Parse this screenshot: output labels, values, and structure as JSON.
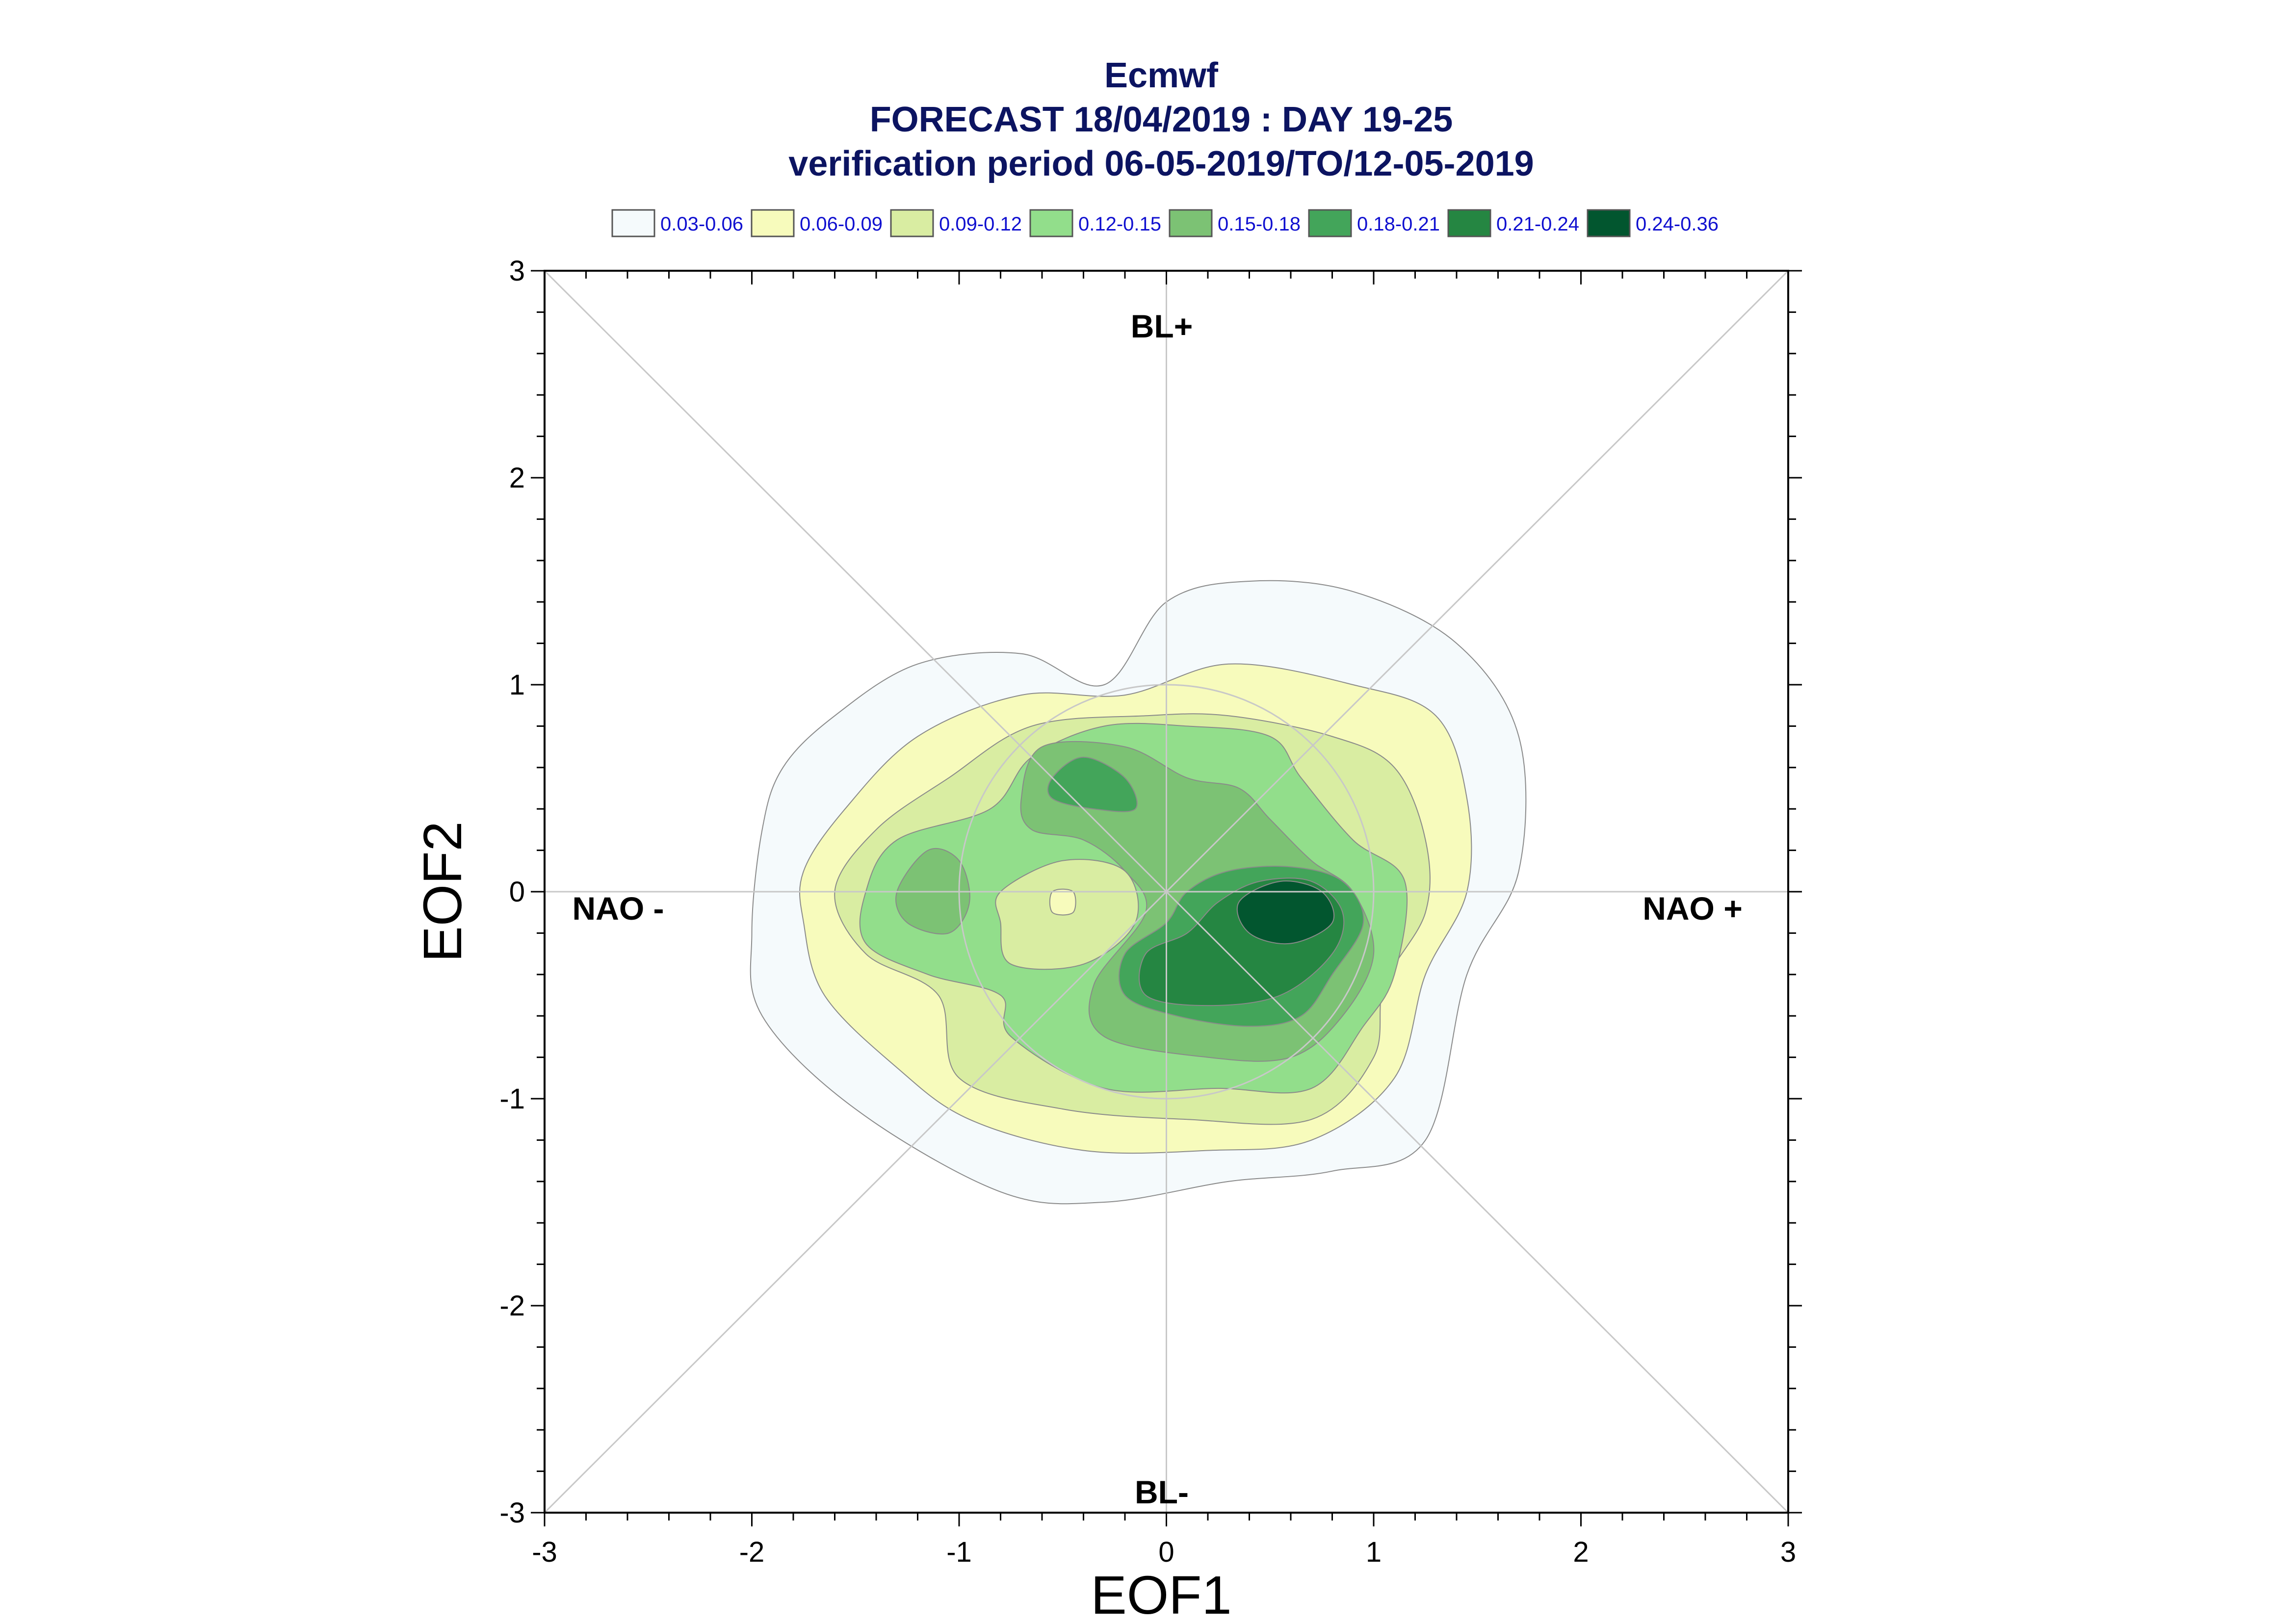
{
  "chart_data": {
    "type": "contour",
    "title": "Ecmwf",
    "subtitle": "FORECAST 18/04/2019 : DAY 19-25",
    "subtitle2": "verification period 06-05-2019/TO/12-05-2019",
    "xlabel": "EOF1",
    "ylabel": "EOF2",
    "xlim": [
      -3,
      3
    ],
    "ylim": [
      -3,
      3
    ],
    "x_ticks": [
      "-3",
      "-2",
      "-1",
      "0",
      "1",
      "2",
      "3"
    ],
    "y_ticks": [
      "-3",
      "-2",
      "-1",
      "0",
      "1",
      "2",
      "3"
    ],
    "regime_labels": {
      "top": "BL+",
      "bottom": "BL-",
      "left": "NAO -",
      "right": "NAO +"
    },
    "legend": [
      {
        "label": "0.03-0.06",
        "color": "#f5fafc"
      },
      {
        "label": "0.06-0.09",
        "color": "#f7fbbc"
      },
      {
        "label": "0.09-0.12",
        "color": "#d9eda2"
      },
      {
        "label": "0.12-0.15",
        "color": "#92de8b"
      },
      {
        "label": "0.15-0.18",
        "color": "#7cc274"
      },
      {
        "label": "0.18-0.21",
        "color": "#43a55a"
      },
      {
        "label": "0.21-0.24",
        "color": "#258642"
      },
      {
        "label": "0.24-0.36",
        "color": "#02562f"
      }
    ],
    "legend_position": "top",
    "reference_circle_radius": 1,
    "contours": [
      {
        "level": "0.03-0.06",
        "points": [
          [
            -1.95,
            0.3
          ],
          [
            -1.85,
            0.6
          ],
          [
            -1.6,
            0.85
          ],
          [
            -1.2,
            1.1
          ],
          [
            -0.7,
            1.15
          ],
          [
            -0.3,
            1.0
          ],
          [
            0.0,
            1.4
          ],
          [
            0.4,
            1.5
          ],
          [
            0.9,
            1.45
          ],
          [
            1.4,
            1.2
          ],
          [
            1.7,
            0.75
          ],
          [
            1.7,
            0.1
          ],
          [
            1.45,
            -0.4
          ],
          [
            1.25,
            -1.2
          ],
          [
            0.8,
            -1.35
          ],
          [
            0.3,
            -1.4
          ],
          [
            -0.3,
            -1.5
          ],
          [
            -0.8,
            -1.45
          ],
          [
            -1.5,
            -1.05
          ],
          [
            -1.95,
            -0.6
          ],
          [
            -2.0,
            -0.2
          ]
        ]
      },
      {
        "level": "0.06-0.09",
        "points": [
          [
            -1.75,
            0.1
          ],
          [
            -1.55,
            0.4
          ],
          [
            -1.2,
            0.75
          ],
          [
            -0.7,
            0.95
          ],
          [
            -0.2,
            0.95
          ],
          [
            0.3,
            1.1
          ],
          [
            0.9,
            1.0
          ],
          [
            1.3,
            0.85
          ],
          [
            1.45,
            0.45
          ],
          [
            1.45,
            0.0
          ],
          [
            1.25,
            -0.4
          ],
          [
            1.1,
            -0.9
          ],
          [
            0.7,
            -1.2
          ],
          [
            0.2,
            -1.25
          ],
          [
            -0.4,
            -1.25
          ],
          [
            -0.95,
            -1.1
          ],
          [
            -1.3,
            -0.85
          ],
          [
            -1.65,
            -0.5
          ],
          [
            -1.75,
            -0.15
          ]
        ]
      },
      {
        "level": "0.09-0.12",
        "points": [
          [
            -1.6,
            0.0
          ],
          [
            -1.4,
            0.3
          ],
          [
            -1.05,
            0.55
          ],
          [
            -0.65,
            0.8
          ],
          [
            -0.1,
            0.85
          ],
          [
            0.3,
            0.85
          ],
          [
            0.8,
            0.75
          ],
          [
            1.1,
            0.6
          ],
          [
            1.25,
            0.25
          ],
          [
            1.25,
            -0.1
          ],
          [
            1.05,
            -0.45
          ],
          [
            1.0,
            -0.8
          ],
          [
            0.7,
            -1.1
          ],
          [
            0.1,
            -1.1
          ],
          [
            -0.5,
            -1.05
          ],
          [
            -1.0,
            -0.9
          ],
          [
            -1.1,
            -0.5
          ],
          [
            -1.45,
            -0.3
          ]
        ]
      },
      {
        "level": "0.12-0.15",
        "points": [
          [
            -1.45,
            0.0
          ],
          [
            -1.3,
            0.25
          ],
          [
            -0.85,
            0.4
          ],
          [
            -0.65,
            0.65
          ],
          [
            -0.3,
            0.8
          ],
          [
            0.1,
            0.8
          ],
          [
            0.5,
            0.75
          ],
          [
            0.65,
            0.55
          ],
          [
            0.9,
            0.25
          ],
          [
            1.15,
            0.05
          ],
          [
            1.1,
            -0.4
          ],
          [
            0.95,
            -0.65
          ],
          [
            0.7,
            -0.95
          ],
          [
            0.25,
            -0.95
          ],
          [
            -0.3,
            -0.95
          ],
          [
            -0.75,
            -0.7
          ],
          [
            -0.8,
            -0.5
          ],
          [
            -1.15,
            -0.4
          ],
          [
            -1.45,
            -0.25
          ]
        ]
      },
      {
        "level": "0.15-0.18",
        "points": [
          [
            -0.7,
            0.45
          ],
          [
            -0.6,
            0.7
          ],
          [
            -0.2,
            0.7
          ],
          [
            0.1,
            0.55
          ],
          [
            0.35,
            0.5
          ],
          [
            0.5,
            0.35
          ],
          [
            0.7,
            0.15
          ],
          [
            0.9,
            0.0
          ],
          [
            1.0,
            -0.3
          ],
          [
            0.85,
            -0.6
          ],
          [
            0.6,
            -0.8
          ],
          [
            0.2,
            -0.8
          ],
          [
            -0.3,
            -0.7
          ],
          [
            -0.35,
            -0.45
          ],
          [
            -0.1,
            -0.1
          ],
          [
            -0.2,
            0.1
          ],
          [
            -0.4,
            0.25
          ],
          [
            -0.65,
            0.3
          ]
        ]
      },
      {
        "level": "0.15-0.18",
        "points": [
          [
            -1.3,
            0.0
          ],
          [
            -1.15,
            0.2
          ],
          [
            -1.0,
            0.15
          ],
          [
            -0.95,
            -0.05
          ],
          [
            -1.05,
            -0.2
          ],
          [
            -1.25,
            -0.15
          ]
        ]
      },
      {
        "level": "0.18-0.21",
        "points": [
          [
            -0.55,
            0.55
          ],
          [
            -0.4,
            0.65
          ],
          [
            -0.2,
            0.55
          ],
          [
            -0.15,
            0.4
          ],
          [
            -0.35,
            0.4
          ],
          [
            -0.55,
            0.45
          ]
        ]
      },
      {
        "level": "0.18-0.21",
        "points": [
          [
            0.1,
            0.0
          ],
          [
            0.3,
            0.1
          ],
          [
            0.6,
            0.12
          ],
          [
            0.85,
            0.05
          ],
          [
            0.95,
            -0.15
          ],
          [
            0.8,
            -0.4
          ],
          [
            0.65,
            -0.6
          ],
          [
            0.4,
            -0.65
          ],
          [
            0.05,
            -0.6
          ],
          [
            -0.2,
            -0.5
          ],
          [
            -0.2,
            -0.3
          ],
          [
            0.0,
            -0.15
          ]
        ]
      },
      {
        "level": "0.21-0.24",
        "points": [
          [
            0.25,
            -0.05
          ],
          [
            0.45,
            0.05
          ],
          [
            0.7,
            0.05
          ],
          [
            0.85,
            -0.1
          ],
          [
            0.8,
            -0.3
          ],
          [
            0.55,
            -0.5
          ],
          [
            0.2,
            -0.55
          ],
          [
            -0.1,
            -0.5
          ],
          [
            -0.1,
            -0.3
          ],
          [
            0.1,
            -0.2
          ]
        ]
      },
      {
        "level": "0.24-0.36",
        "points": [
          [
            0.35,
            -0.05
          ],
          [
            0.55,
            0.05
          ],
          [
            0.75,
            0.0
          ],
          [
            0.8,
            -0.15
          ],
          [
            0.6,
            -0.25
          ],
          [
            0.4,
            -0.2
          ]
        ]
      },
      {
        "level": "0.09-0.12",
        "points": [
          [
            -0.8,
            0.0
          ],
          [
            -0.5,
            0.15
          ],
          [
            -0.2,
            0.1
          ],
          [
            -0.15,
            -0.15
          ],
          [
            -0.4,
            -0.35
          ],
          [
            -0.75,
            -0.35
          ],
          [
            -0.8,
            -0.15
          ]
        ]
      },
      {
        "level": "0.06-0.09",
        "points": [
          [
            -0.55,
            0.0
          ],
          [
            -0.45,
            0.0
          ],
          [
            -0.45,
            -0.1
          ],
          [
            -0.55,
            -0.1
          ]
        ]
      }
    ]
  }
}
